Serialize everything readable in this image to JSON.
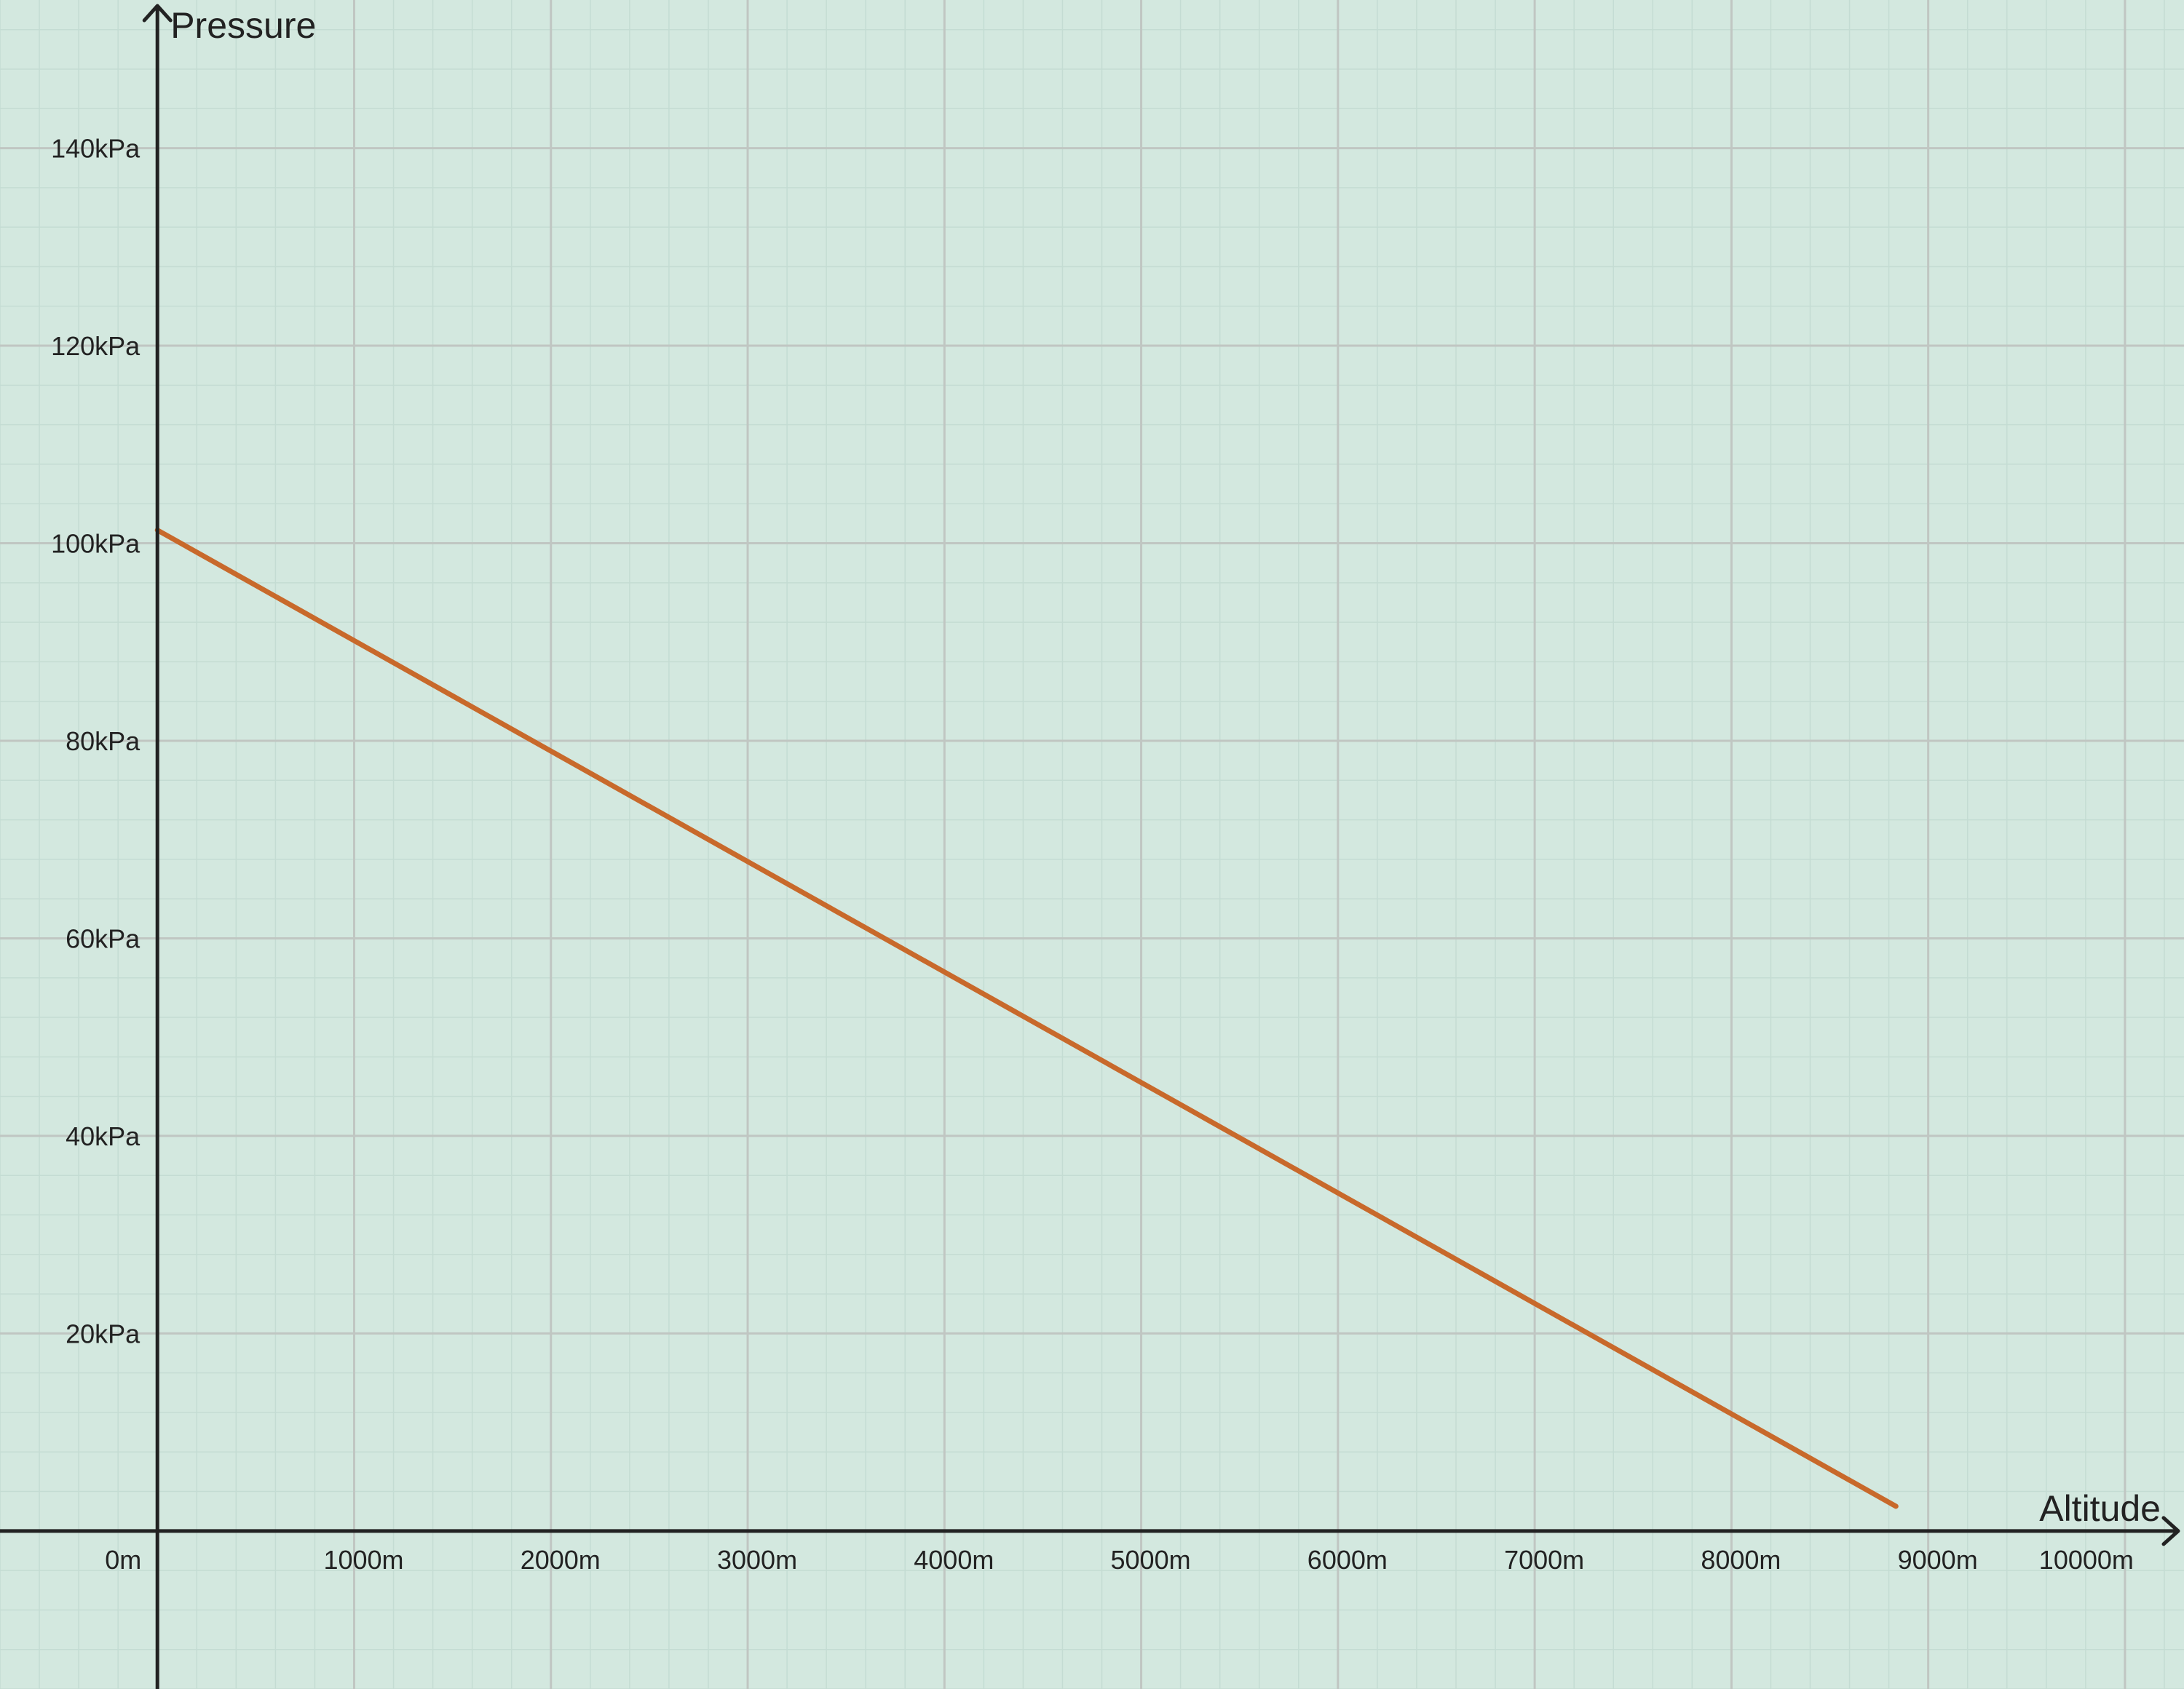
{
  "chart_data": {
    "type": "line",
    "xlabel": "Altitude",
    "ylabel": "Pressure",
    "xlim": [
      -800,
      10300
    ],
    "ylim": [
      -16,
      155
    ],
    "x_ticks": [
      0,
      1000,
      2000,
      3000,
      4000,
      5000,
      6000,
      7000,
      8000,
      9000,
      10000
    ],
    "x_tick_labels": [
      "0m",
      "1000m",
      "2000m",
      "3000m",
      "4000m",
      "5000m",
      "6000m",
      "7000m",
      "8000m",
      "9000m",
      "10000m"
    ],
    "y_ticks": [
      20,
      40,
      60,
      80,
      100,
      120,
      140
    ],
    "y_tick_labels": [
      "20kPa",
      "40kPa",
      "60kPa",
      "80kPa",
      "100kPa",
      "120kPa",
      "140kPa"
    ],
    "grid": true,
    "series": [
      {
        "x": [
          0,
          8836
        ],
        "y": [
          101.325,
          2.5
        ]
      }
    ],
    "colors": {
      "background": "#d3e8df",
      "major_grid": "#c0c6c2",
      "minor_grid": "#c4dcd3",
      "axis": "#222222",
      "line": "#c8692b"
    }
  }
}
